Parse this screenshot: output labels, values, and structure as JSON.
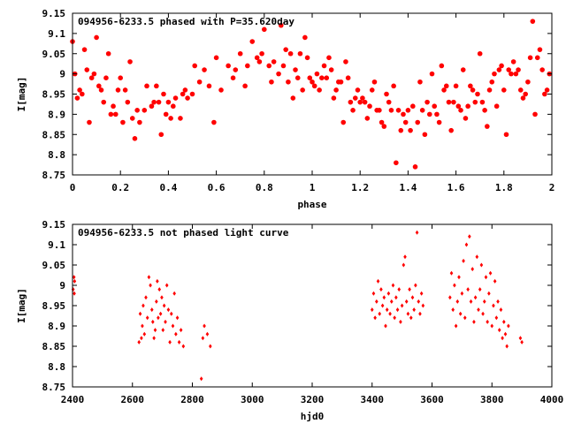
{
  "chart_data": [
    {
      "type": "scatter",
      "title": "094956-6233.5 phased with P=35.620day",
      "xlabel": "phase",
      "ylabel": "I[mag]",
      "xlim": [
        0,
        2
      ],
      "ylim": [
        9.15,
        8.75
      ],
      "y_inverted": true,
      "grid": false,
      "marker": "filled circle",
      "color": "#ff0000",
      "x_ticks": [
        "0",
        "0.2",
        "0.4",
        "0.6",
        "0.8",
        "1",
        "1.2",
        "1.4",
        "1.6",
        "1.8",
        "2"
      ],
      "y_ticks": [
        "8.75",
        "8.8",
        "8.85",
        "8.9",
        "8.95",
        "9",
        "9.05",
        "9.1",
        "9.15"
      ],
      "x": [
        0.0,
        0.01,
        0.02,
        0.03,
        0.04,
        0.05,
        0.06,
        0.07,
        0.08,
        0.09,
        0.1,
        0.11,
        0.12,
        0.13,
        0.14,
        0.15,
        0.16,
        0.17,
        0.18,
        0.19,
        0.2,
        0.21,
        0.22,
        0.23,
        0.24,
        0.25,
        0.26,
        0.27,
        0.28,
        0.3,
        0.31,
        0.33,
        0.34,
        0.35,
        0.36,
        0.37,
        0.38,
        0.39,
        0.4,
        0.41,
        0.42,
        0.43,
        0.45,
        0.46,
        0.47,
        0.48,
        0.5,
        0.51,
        0.53,
        0.55,
        0.57,
        0.59,
        0.6,
        0.62,
        0.65,
        0.67,
        0.68,
        0.7,
        0.72,
        0.73,
        0.75,
        0.77,
        0.78,
        0.79,
        0.8,
        0.82,
        0.83,
        0.84,
        0.86,
        0.87,
        0.88,
        0.89,
        0.9,
        0.91,
        0.92,
        0.93,
        0.94,
        0.95,
        0.96,
        0.97,
        0.98,
        0.99,
        1.0,
        1.01,
        1.02,
        1.03,
        1.04,
        1.05,
        1.06,
        1.07,
        1.08,
        1.09,
        1.1,
        1.11,
        1.12,
        1.13,
        1.14,
        1.15,
        1.16,
        1.17,
        1.18,
        1.19,
        1.2,
        1.21,
        1.22,
        1.23,
        1.24,
        1.25,
        1.26,
        1.27,
        1.28,
        1.29,
        1.3,
        1.31,
        1.32,
        1.33,
        1.34,
        1.35,
        1.36,
        1.37,
        1.38,
        1.39,
        1.4,
        1.41,
        1.42,
        1.43,
        1.44,
        1.45,
        1.46,
        1.47,
        1.48,
        1.49,
        1.5,
        1.51,
        1.52,
        1.53,
        1.54,
        1.55,
        1.56,
        1.57,
        1.58,
        1.59,
        1.6,
        1.61,
        1.62,
        1.63,
        1.64,
        1.65,
        1.66,
        1.67,
        1.68,
        1.69,
        1.7,
        1.71,
        1.72,
        1.73,
        1.74,
        1.75,
        1.76,
        1.77,
        1.78,
        1.79,
        1.8,
        1.81,
        1.82,
        1.83,
        1.84,
        1.85,
        1.86,
        1.87,
        1.88,
        1.89,
        1.9,
        1.91,
        1.92,
        1.93,
        1.94,
        1.95,
        1.96,
        1.97,
        1.98,
        1.99
      ],
      "y": [
        9.08,
        9.0,
        8.94,
        8.96,
        8.95,
        9.06,
        9.01,
        8.88,
        8.99,
        9.0,
        9.09,
        8.97,
        8.96,
        8.93,
        8.99,
        9.05,
        8.9,
        8.92,
        8.9,
        8.96,
        8.99,
        8.88,
        8.96,
        8.93,
        9.03,
        8.89,
        8.84,
        8.91,
        8.88,
        8.91,
        8.97,
        8.92,
        8.93,
        8.97,
        8.93,
        8.85,
        8.95,
        8.9,
        8.93,
        8.89,
        8.92,
        8.94,
        8.89,
        8.95,
        8.96,
        8.94,
        8.95,
        9.02,
        8.98,
        9.01,
        8.97,
        8.88,
        9.04,
        8.96,
        9.02,
        8.99,
        9.01,
        9.05,
        8.97,
        9.02,
        9.08,
        9.04,
        9.03,
        9.05,
        9.11,
        9.02,
        8.98,
        9.03,
        9.0,
        9.12,
        9.02,
        9.06,
        8.98,
        9.05,
        8.94,
        9.01,
        8.99,
        9.05,
        8.96,
        9.09,
        9.04,
        8.99,
        8.98,
        8.97,
        9.0,
        8.96,
        8.99,
        9.02,
        8.99,
        9.04,
        9.01,
        8.94,
        8.96,
        8.98,
        8.98,
        8.88,
        9.03,
        8.99,
        8.93,
        8.91,
        8.94,
        8.96,
        8.93,
        8.94,
        8.93,
        8.89,
        8.92,
        8.96,
        8.98,
        8.91,
        8.91,
        8.88,
        8.87,
        8.95,
        8.93,
        8.91,
        8.97,
        8.78,
        8.91,
        8.86,
        8.9,
        8.88,
        8.91,
        8.86,
        8.92,
        8.77,
        8.88,
        8.98,
        8.91,
        8.85,
        8.93,
        8.9,
        9.0,
        8.92,
        8.9,
        8.88,
        9.02,
        8.96,
        8.97,
        8.93,
        8.86,
        8.93,
        8.97,
        8.92,
        8.91,
        9.01,
        8.89,
        8.92,
        8.97,
        8.96,
        8.93,
        8.95,
        9.05,
        8.93,
        8.91,
        8.87,
        8.96,
        8.98,
        9.0,
        8.92,
        9.01,
        9.02,
        8.96,
        8.85,
        9.01,
        9.0,
        9.03,
        9.0,
        9.01,
        8.96,
        8.94,
        8.95,
        8.98,
        9.04,
        9.13,
        8.9,
        9.04,
        9.06,
        9.01,
        8.95,
        8.96,
        9.0
      ]
    },
    {
      "type": "scatter",
      "title": "094956-6233.5 not phased light curve",
      "xlabel": "hjd0",
      "ylabel": "I[mag]",
      "xlim": [
        2400,
        4000
      ],
      "ylim": [
        9.15,
        8.75
      ],
      "y_inverted": true,
      "grid": false,
      "marker": "small diamond",
      "color": "#ff0000",
      "x_ticks": [
        "2400",
        "2600",
        "2800",
        "3000",
        "3200",
        "3400",
        "3600",
        "3800",
        "4000"
      ],
      "y_ticks": [
        "8.75",
        "8.8",
        "8.85",
        "8.9",
        "8.95",
        "9",
        "9.05",
        "9.1",
        "9.15"
      ],
      "x": [
        2402,
        2405,
        2406,
        2407,
        2622,
        2626,
        2630,
        2633,
        2636,
        2640,
        2645,
        2650,
        2655,
        2660,
        2665,
        2668,
        2672,
        2676,
        2680,
        2683,
        2686,
        2690,
        2694,
        2698,
        2702,
        2706,
        2710,
        2715,
        2720,
        2725,
        2730,
        2735,
        2740,
        2745,
        2750,
        2756,
        2762,
        2770,
        2830,
        2835,
        2840,
        2850,
        2860,
        3400,
        3405,
        3410,
        3415,
        3420,
        3425,
        3430,
        3435,
        3440,
        3445,
        3450,
        3455,
        3460,
        3465,
        3470,
        3475,
        3480,
        3485,
        3490,
        3495,
        3500,
        3505,
        3510,
        3515,
        3520,
        3525,
        3530,
        3535,
        3540,
        3545,
        3550,
        3555,
        3560,
        3565,
        3570,
        3660,
        3665,
        3670,
        3675,
        3680,
        3685,
        3690,
        3695,
        3700,
        3705,
        3710,
        3715,
        3720,
        3725,
        3730,
        3735,
        3740,
        3745,
        3750,
        3755,
        3760,
        3765,
        3770,
        3775,
        3780,
        3785,
        3790,
        3795,
        3800,
        3805,
        3810,
        3815,
        3820,
        3825,
        3830,
        3835,
        3840,
        3845,
        3850,
        3855,
        3895,
        3900
      ],
      "y": [
        8.99,
        9.02,
        8.98,
        9.01,
        8.86,
        8.93,
        8.87,
        8.9,
        8.95,
        8.88,
        8.97,
        8.92,
        9.02,
        9.0,
        8.94,
        8.91,
        8.87,
        8.89,
        8.96,
        9.01,
        8.92,
        8.99,
        8.93,
        8.97,
        8.89,
        8.95,
        8.91,
        9.0,
        8.94,
        8.86,
        8.93,
        8.9,
        8.98,
        8.88,
        8.92,
        8.86,
        8.89,
        8.85,
        8.77,
        8.87,
        8.9,
        8.88,
        8.85,
        8.94,
        8.98,
        8.92,
        8.96,
        9.01,
        8.93,
        8.99,
        8.95,
        8.97,
        8.9,
        8.94,
        8.98,
        8.93,
        8.96,
        9.0,
        8.92,
        8.97,
        8.94,
        8.99,
        8.91,
        8.95,
        9.05,
        9.07,
        8.96,
        8.93,
        8.99,
        8.92,
        8.97,
        8.94,
        9.0,
        9.13,
        8.96,
        8.93,
        8.98,
        8.95,
        8.97,
        9.03,
        8.94,
        9.0,
        8.9,
        8.96,
        9.02,
        8.93,
        8.98,
        9.06,
        8.92,
        9.1,
        8.99,
        9.12,
        8.96,
        9.04,
        8.91,
        8.97,
        9.07,
        8.94,
        8.99,
        9.05,
        8.93,
        8.96,
        9.02,
        8.91,
        8.98,
        9.03,
        8.9,
        8.95,
        9.01,
        8.92,
        8.96,
        8.89,
        8.94,
        8.87,
        8.91,
        8.88,
        8.85,
        8.9,
        8.87,
        8.86
      ]
    }
  ]
}
